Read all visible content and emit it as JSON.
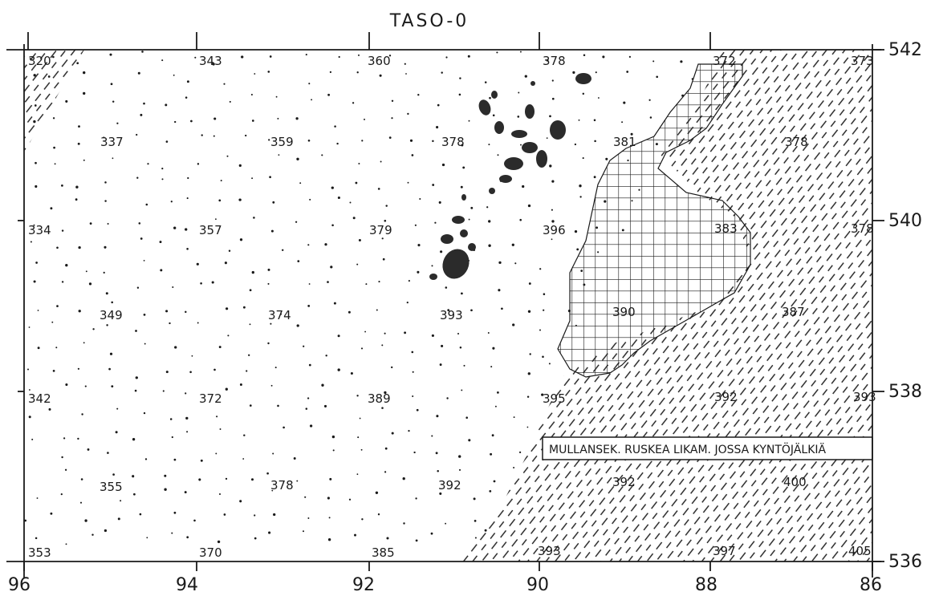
{
  "map": {
    "title": "TASO-0",
    "x_axis_ticks": [
      "96",
      "94",
      "92",
      "90",
      "88",
      "86"
    ],
    "y_axis_ticks": [
      "542",
      "540",
      "538",
      "536"
    ],
    "legend_note": "MULLANSEK. RUSKEA LIKAM. JOSSA KYNTÖJÄLKIÄ",
    "colors": {
      "ink": "#1a1a1a",
      "paper": "#ffffff",
      "stones": "#2b2b2b"
    }
  },
  "cells": [
    {
      "value": "320"
    },
    {
      "value": "343"
    },
    {
      "value": "360"
    },
    {
      "value": "378"
    },
    {
      "value": "372"
    },
    {
      "value": "373"
    },
    {
      "value": "337"
    },
    {
      "value": "359"
    },
    {
      "value": "378"
    },
    {
      "value": "381"
    },
    {
      "value": "378"
    },
    {
      "value": "334"
    },
    {
      "value": "357"
    },
    {
      "value": "379"
    },
    {
      "value": "396"
    },
    {
      "value": "383"
    },
    {
      "value": "378"
    },
    {
      "value": "349"
    },
    {
      "value": "374"
    },
    {
      "value": "393"
    },
    {
      "value": "390"
    },
    {
      "value": "387"
    },
    {
      "value": "342"
    },
    {
      "value": "372"
    },
    {
      "value": "389"
    },
    {
      "value": "395"
    },
    {
      "value": "392"
    },
    {
      "value": "393"
    },
    {
      "value": "355"
    },
    {
      "value": "378"
    },
    {
      "value": "392"
    },
    {
      "value": "392"
    },
    {
      "value": "400"
    },
    {
      "value": "353"
    },
    {
      "value": "370"
    },
    {
      "value": "385"
    },
    {
      "value": "393"
    },
    {
      "value": "397"
    },
    {
      "value": "405"
    }
  ]
}
